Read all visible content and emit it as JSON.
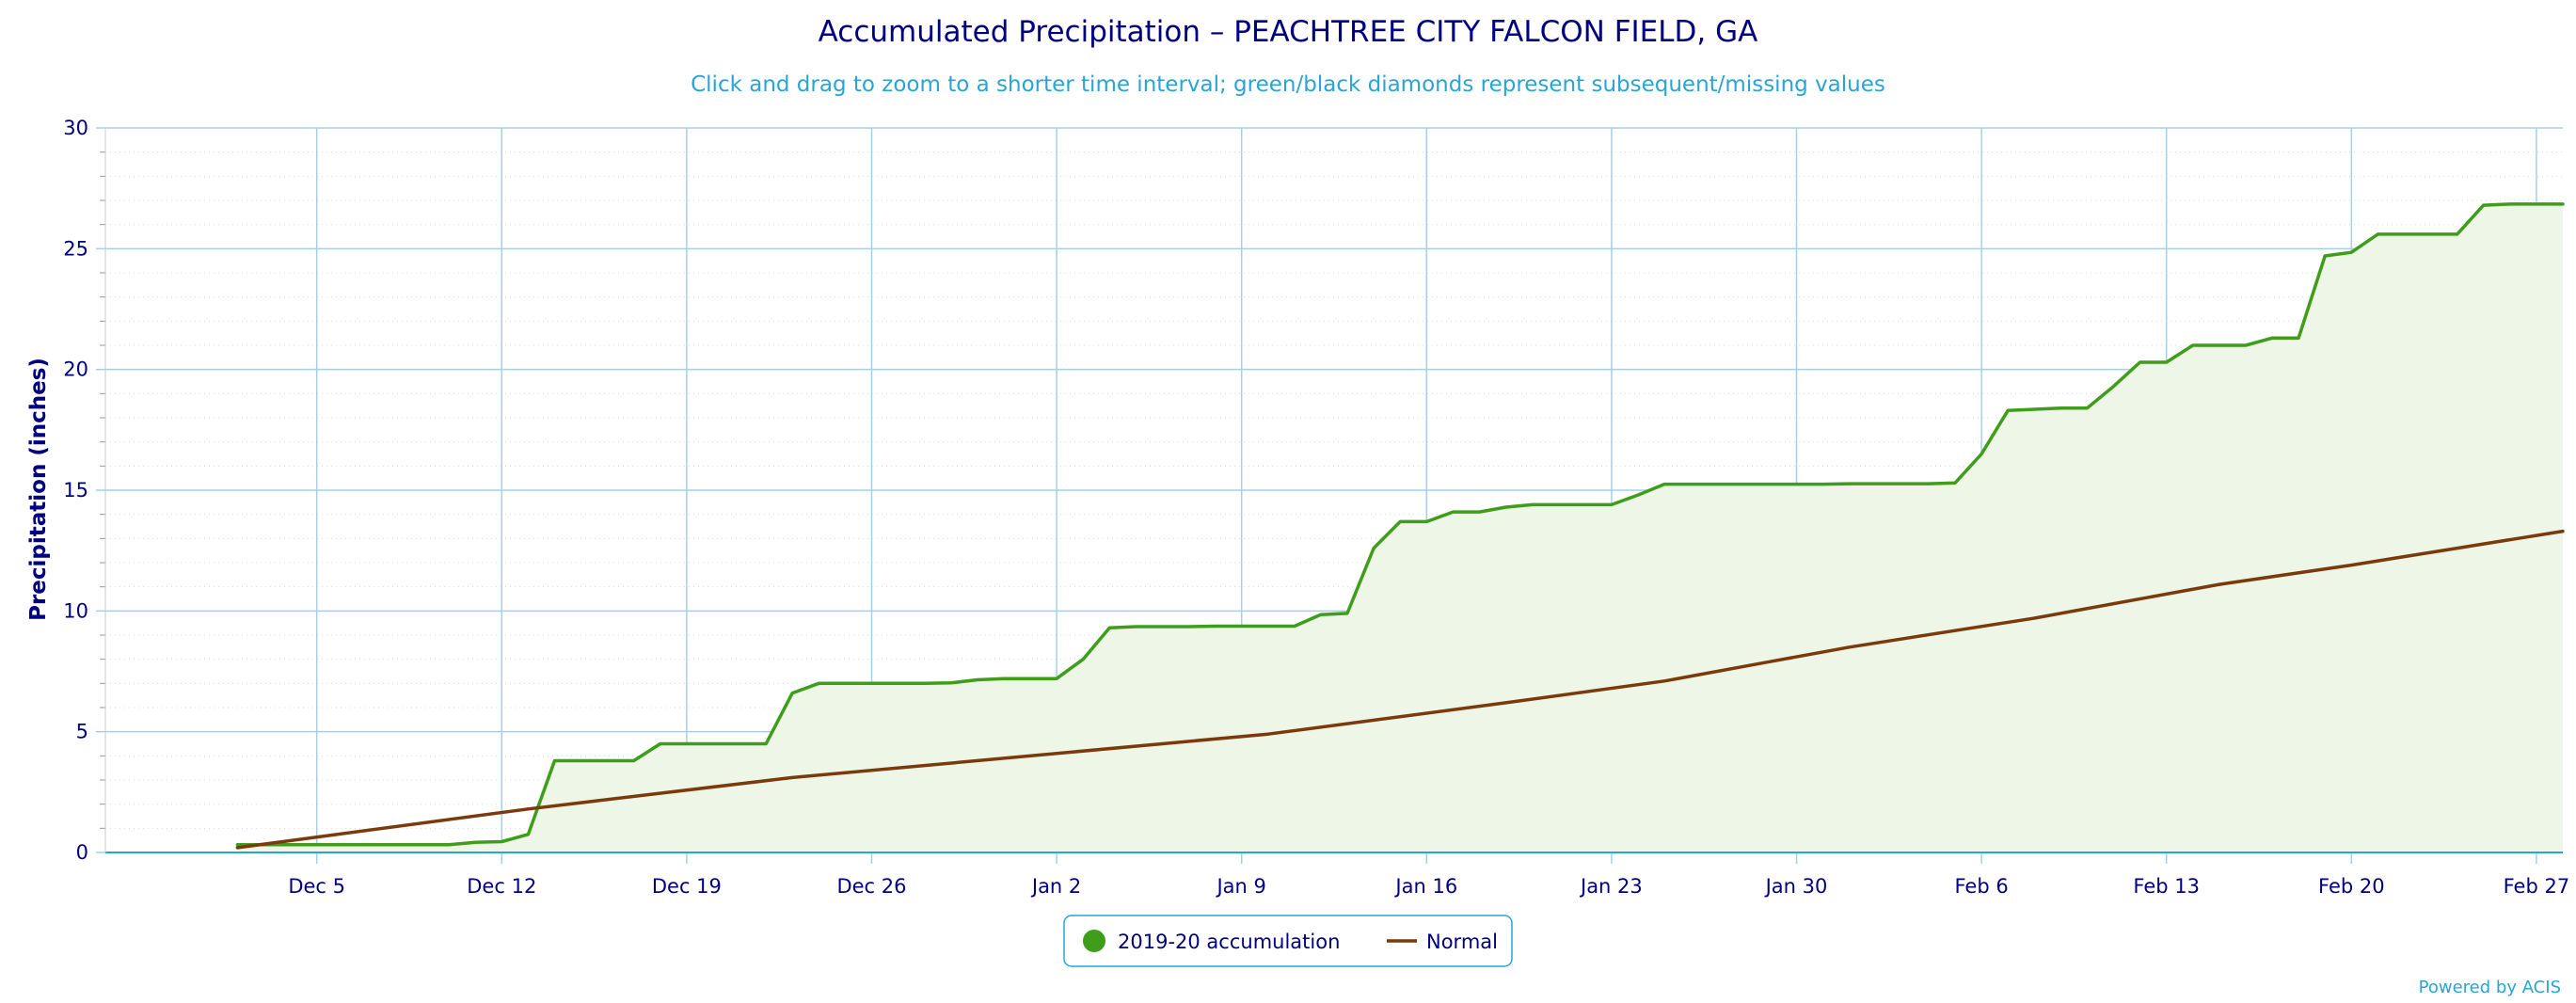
{
  "chart_data": {
    "type": "area",
    "title": "Accumulated Precipitation – PEACHTREE CITY FALCON FIELD, GA",
    "subtitle": "Click and drag to zoom to a shorter time interval; green/black diamonds represent subsequent/missing values",
    "ylabel": "Precipitation (inches)",
    "xlabel": "",
    "ylim": [
      0,
      30
    ],
    "y_ticks": [
      0,
      5,
      10,
      15,
      20,
      25,
      30
    ],
    "x_range_days": [
      -4,
      89
    ],
    "x_ticks": [
      {
        "day": 4,
        "label": "Dec 5"
      },
      {
        "day": 11,
        "label": "Dec 12"
      },
      {
        "day": 18,
        "label": "Dec 19"
      },
      {
        "day": 25,
        "label": "Dec 26"
      },
      {
        "day": 32,
        "label": "Jan 2"
      },
      {
        "day": 39,
        "label": "Jan 9"
      },
      {
        "day": 46,
        "label": "Jan 16"
      },
      {
        "day": 53,
        "label": "Jan 23"
      },
      {
        "day": 60,
        "label": "Jan 30"
      },
      {
        "day": 67,
        "label": "Feb 6"
      },
      {
        "day": 74,
        "label": "Feb 13"
      },
      {
        "day": 81,
        "label": "Feb 20"
      },
      {
        "day": 88,
        "label": "Feb 27"
      }
    ],
    "grid": true,
    "legend_position": "bottom-center",
    "series": [
      {
        "name": "2019-20 accumulation",
        "color": "#3f9e19",
        "fill": "#eef6e8",
        "x": [
          1,
          2,
          3,
          4,
          5,
          6,
          7,
          8,
          9,
          10,
          11,
          12,
          13,
          14,
          15,
          16,
          17,
          18,
          19,
          20,
          21,
          22,
          23,
          24,
          25,
          26,
          27,
          28,
          29,
          30,
          31,
          32,
          33,
          34,
          35,
          36,
          37,
          38,
          39,
          40,
          41,
          42,
          43,
          44,
          45,
          46,
          47,
          48,
          49,
          50,
          51,
          52,
          53,
          54,
          55,
          56,
          57,
          58,
          59,
          60,
          61,
          62,
          63,
          64,
          65,
          66,
          67,
          68,
          69,
          70,
          71,
          72,
          73,
          74,
          75,
          76,
          77,
          78,
          79,
          80,
          81,
          82,
          83,
          84,
          85,
          86,
          87,
          88,
          89
        ],
        "y": [
          0.32,
          0.32,
          0.32,
          0.32,
          0.32,
          0.32,
          0.32,
          0.32,
          0.32,
          0.42,
          0.45,
          0.75,
          3.8,
          3.8,
          3.8,
          3.8,
          4.5,
          4.5,
          4.5,
          4.5,
          4.5,
          6.6,
          7.0,
          7.0,
          7.0,
          7.0,
          7.0,
          7.02,
          7.15,
          7.2,
          7.2,
          7.2,
          8.0,
          9.3,
          9.35,
          9.35,
          9.35,
          9.37,
          9.37,
          9.37,
          9.37,
          9.85,
          9.9,
          12.6,
          13.7,
          13.7,
          14.1,
          14.1,
          14.3,
          14.4,
          14.4,
          14.4,
          14.4,
          14.8,
          15.25,
          15.25,
          15.25,
          15.25,
          15.25,
          15.25,
          15.25,
          15.27,
          15.27,
          15.27,
          15.27,
          15.3,
          16.5,
          18.3,
          18.35,
          18.4,
          18.4,
          19.3,
          20.3,
          20.3,
          21.0,
          21.0,
          21.0,
          21.3,
          21.3,
          24.7,
          24.85,
          25.6,
          25.6,
          25.6,
          25.6,
          26.8,
          26.85,
          26.85,
          26.85
        ]
      },
      {
        "name": "Normal",
        "color": "#7a3a0c",
        "x": [
          1,
          12,
          22,
          30,
          40,
          49,
          55,
          59,
          62,
          69,
          76,
          81,
          85,
          89
        ],
        "y": [
          0.2,
          1.8,
          3.1,
          3.9,
          4.9,
          6.2,
          7.1,
          7.9,
          8.5,
          9.7,
          11.1,
          11.9,
          12.6,
          13.3
        ]
      }
    ],
    "legend_items": [
      "2019-20 accumulation",
      "Normal"
    ],
    "credits": "Powered by ACIS"
  }
}
